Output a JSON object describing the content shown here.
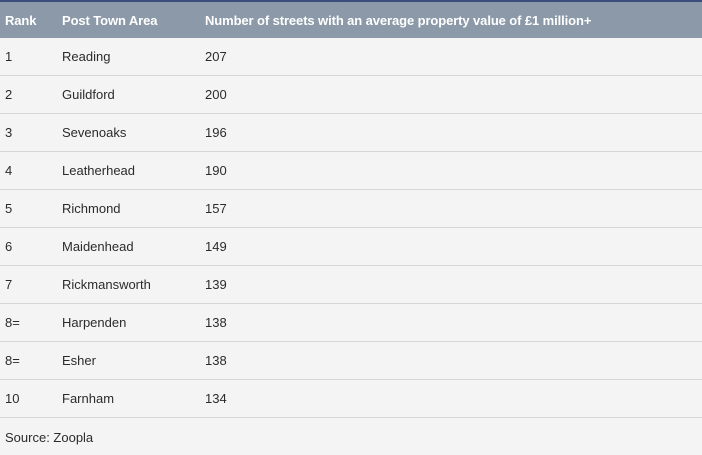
{
  "table": {
    "headers": [
      "Rank",
      "Post Town Area",
      "Number of streets with an average property value of £1 million+"
    ],
    "rows": [
      {
        "rank": "1",
        "area": "Reading",
        "count": "207"
      },
      {
        "rank": "2",
        "area": "Guildford",
        "count": "200"
      },
      {
        "rank": "3",
        "area": "Sevenoaks",
        "count": "196"
      },
      {
        "rank": "4",
        "area": "Leatherhead",
        "count": "190"
      },
      {
        "rank": "5",
        "area": "Richmond",
        "count": "157"
      },
      {
        "rank": "6",
        "area": "Maidenhead",
        "count": "149"
      },
      {
        "rank": "7",
        "area": "Rickmansworth",
        "count": "139"
      },
      {
        "rank": "8=",
        "area": "Harpenden",
        "count": "138"
      },
      {
        "rank": "8=",
        "area": "Esher",
        "count": "138"
      },
      {
        "rank": "10",
        "area": "Farnham",
        "count": "134"
      }
    ]
  },
  "source": "Source: Zoopla",
  "colors": {
    "header_bg": "#8b99a8",
    "header_border": "#3a4d7d",
    "body_bg": "#f4f4f4",
    "row_divider": "#d6d6d6"
  }
}
